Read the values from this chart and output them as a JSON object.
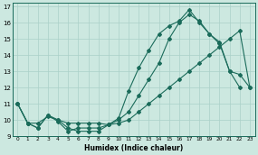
{
  "xlabel": "Humidex (Indice chaleur)",
  "bg_color": "#cce8e0",
  "line_color": "#1a6b5a",
  "grid_color": "#aad0c8",
  "xlim": [
    -0.5,
    23.5
  ],
  "ylim": [
    9.0,
    17.2
  ],
  "yticks": [
    9,
    10,
    11,
    12,
    13,
    14,
    15,
    16,
    17
  ],
  "xticks": [
    0,
    1,
    2,
    3,
    4,
    5,
    6,
    7,
    8,
    9,
    10,
    11,
    12,
    13,
    14,
    15,
    16,
    17,
    18,
    19,
    20,
    21,
    22,
    23
  ],
  "line1_x": [
    0,
    1,
    2,
    3,
    4,
    5,
    6,
    7,
    8,
    9,
    10,
    11,
    12,
    13,
    14,
    15,
    16,
    17,
    18,
    19,
    20,
    21,
    22,
    23
  ],
  "line1_y": [
    11.0,
    9.8,
    9.5,
    10.3,
    10.0,
    9.5,
    9.3,
    9.3,
    9.3,
    9.7,
    10.0,
    10.5,
    11.5,
    12.5,
    13.5,
    15.0,
    16.0,
    16.5,
    16.1,
    15.3,
    14.7,
    13.0,
    12.8,
    12.0
  ],
  "line2_x": [
    0,
    1,
    2,
    3,
    4,
    5,
    6,
    7,
    8,
    9,
    10,
    11,
    12,
    13,
    14,
    15,
    16,
    17,
    18,
    19,
    20,
    21,
    22
  ],
  "line2_y": [
    11.0,
    9.8,
    9.5,
    10.3,
    9.9,
    9.3,
    9.5,
    9.5,
    9.5,
    9.7,
    10.1,
    11.8,
    13.2,
    14.3,
    15.3,
    15.8,
    16.1,
    16.8,
    16.0,
    15.3,
    14.8,
    13.0,
    12.0
  ],
  "line3_x": [
    0,
    1,
    2,
    3,
    4,
    5,
    6,
    7,
    8,
    9,
    10,
    11,
    12,
    13,
    14,
    15,
    16,
    17,
    18,
    19,
    20,
    21,
    22,
    23
  ],
  "line3_y": [
    11.0,
    9.8,
    9.8,
    10.2,
    10.0,
    9.8,
    9.8,
    9.8,
    9.8,
    9.7,
    9.8,
    10.0,
    10.5,
    11.0,
    11.5,
    12.0,
    12.5,
    13.0,
    13.5,
    14.0,
    14.5,
    15.0,
    15.5,
    12.0
  ]
}
